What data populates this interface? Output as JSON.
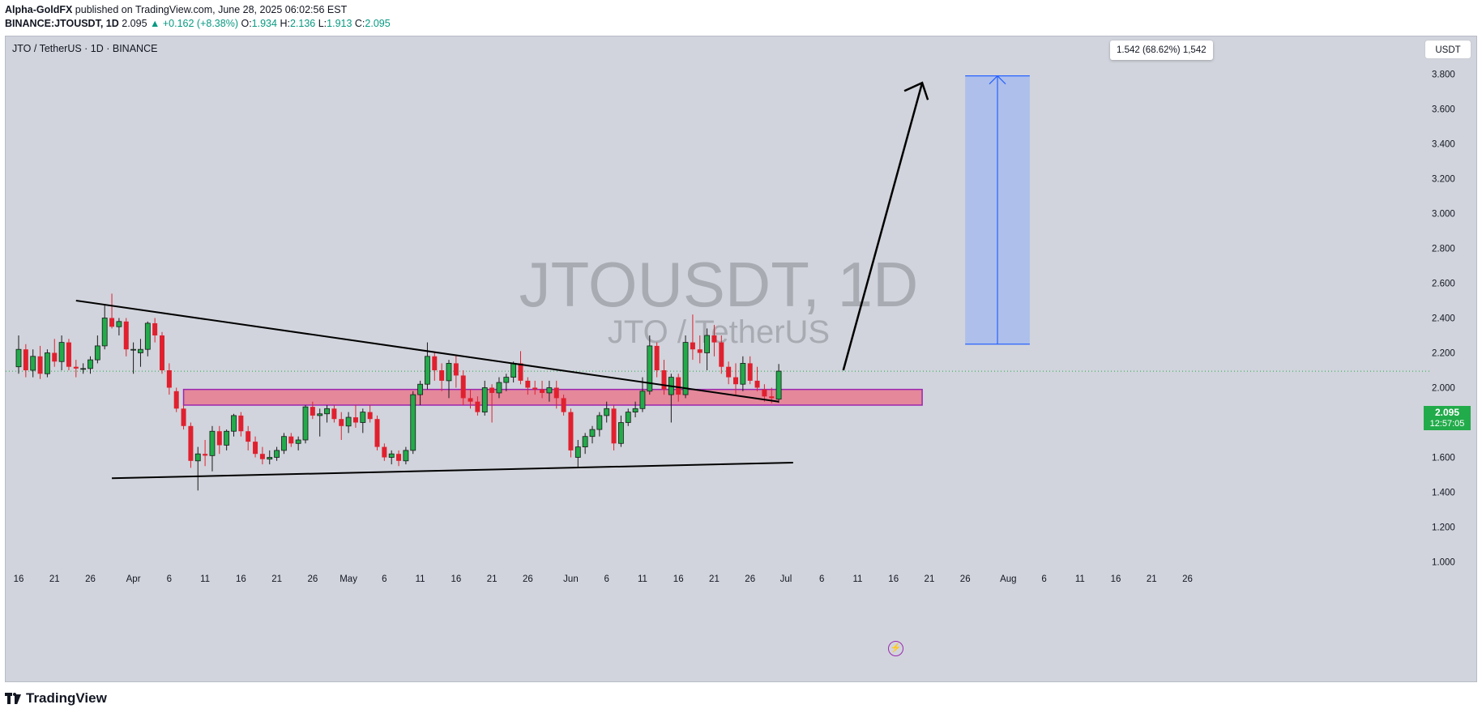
{
  "header": {
    "publisher": "Alpha-GoldFX",
    "published_text": " published on TradingView.com, June 28, 2025 06:02:56 EST",
    "symbol_line": "BINANCE:JTOUSDT, 1D",
    "last": "2.095",
    "change": "▲ +0.162 (+8.38%)",
    "o_label": "O:",
    "o": "1.934",
    "h_label": "H:",
    "h": "2.136",
    "l_label": "L:",
    "l": "1.913",
    "c_label": "C:",
    "c": "2.095"
  },
  "chart_title": "JTO / TetherUS · 1D · BINANCE",
  "currency_button": "USDT",
  "measure_label": "1.542 (68.62%) 1,542",
  "price_tag": {
    "price": "2.095",
    "countdown": "12:57:05"
  },
  "footer_brand": "TradingView",
  "colors": {
    "background": "#d1d4dc",
    "up": "#22ab4a",
    "down": "#e0202e",
    "zone_fill": "#e87a8e",
    "zone_border": "#9c27b0",
    "measure_fill": "#a9bdeb",
    "measure_line": "#2962ff",
    "watermark": "#a9abb3"
  },
  "icons": {
    "alert": "lightning-icon",
    "brand": "tradingview-logo-icon"
  },
  "chart_data": {
    "type": "candlestick",
    "watermark": {
      "title": "JTOUSDT, 1D",
      "subtitle": "JTO / TetherUS"
    },
    "y_axis": {
      "ylim": [
        0.9,
        3.83
      ],
      "ticks": [
        "1.000",
        "1.200",
        "1.400",
        "1.600",
        "1.800",
        "2.000",
        "2.200",
        "2.400",
        "2.600",
        "2.800",
        "3.000",
        "3.200",
        "3.400",
        "3.600",
        "3.800"
      ]
    },
    "x_axis": {
      "start": "2025-03-16",
      "ticks": [
        {
          "date": "2025-03-16",
          "label": "16"
        },
        {
          "date": "2025-03-21",
          "label": "21"
        },
        {
          "date": "2025-03-26",
          "label": "26"
        },
        {
          "date": "2025-04-01",
          "label": "Apr"
        },
        {
          "date": "2025-04-06",
          "label": "6"
        },
        {
          "date": "2025-04-11",
          "label": "11"
        },
        {
          "date": "2025-04-16",
          "label": "16"
        },
        {
          "date": "2025-04-21",
          "label": "21"
        },
        {
          "date": "2025-04-26",
          "label": "26"
        },
        {
          "date": "2025-05-01",
          "label": "May"
        },
        {
          "date": "2025-05-06",
          "label": "6"
        },
        {
          "date": "2025-05-11",
          "label": "11"
        },
        {
          "date": "2025-05-16",
          "label": "16"
        },
        {
          "date": "2025-05-21",
          "label": "21"
        },
        {
          "date": "2025-05-26",
          "label": "26"
        },
        {
          "date": "2025-06-01",
          "label": "Jun"
        },
        {
          "date": "2025-06-06",
          "label": "6"
        },
        {
          "date": "2025-06-11",
          "label": "11"
        },
        {
          "date": "2025-06-16",
          "label": "16"
        },
        {
          "date": "2025-06-21",
          "label": "21"
        },
        {
          "date": "2025-06-26",
          "label": "26"
        },
        {
          "date": "2025-07-01",
          "label": "Jul"
        },
        {
          "date": "2025-07-06",
          "label": "6"
        },
        {
          "date": "2025-07-11",
          "label": "11"
        },
        {
          "date": "2025-07-16",
          "label": "16"
        },
        {
          "date": "2025-07-21",
          "label": "21"
        },
        {
          "date": "2025-07-26",
          "label": "26"
        },
        {
          "date": "2025-08-01",
          "label": "Aug"
        },
        {
          "date": "2025-08-06",
          "label": "6"
        },
        {
          "date": "2025-08-11",
          "label": "11"
        },
        {
          "date": "2025-08-16",
          "label": "16"
        },
        {
          "date": "2025-08-21",
          "label": "21"
        },
        {
          "date": "2025-08-26",
          "label": "26"
        }
      ]
    },
    "candles": [
      {
        "date": "2025-03-16",
        "o": 2.12,
        "h": 2.3,
        "l": 2.08,
        "c": 2.22
      },
      {
        "date": "2025-03-17",
        "o": 2.22,
        "h": 2.25,
        "l": 2.06,
        "c": 2.1
      },
      {
        "date": "2025-03-18",
        "o": 2.1,
        "h": 2.22,
        "l": 2.06,
        "c": 2.18
      },
      {
        "date": "2025-03-19",
        "o": 2.18,
        "h": 2.24,
        "l": 2.05,
        "c": 2.08
      },
      {
        "date": "2025-03-20",
        "o": 2.08,
        "h": 2.22,
        "l": 2.06,
        "c": 2.2
      },
      {
        "date": "2025-03-21",
        "o": 2.2,
        "h": 2.28,
        "l": 2.12,
        "c": 2.15
      },
      {
        "date": "2025-03-22",
        "o": 2.15,
        "h": 2.3,
        "l": 2.1,
        "c": 2.26
      },
      {
        "date": "2025-03-23",
        "o": 2.26,
        "h": 2.28,
        "l": 2.1,
        "c": 2.12
      },
      {
        "date": "2025-03-24",
        "o": 2.12,
        "h": 2.16,
        "l": 2.06,
        "c": 2.11
      },
      {
        "date": "2025-03-25",
        "o": 2.11,
        "h": 2.14,
        "l": 2.08,
        "c": 2.11
      },
      {
        "date": "2025-03-26",
        "o": 2.11,
        "h": 2.18,
        "l": 2.08,
        "c": 2.16
      },
      {
        "date": "2025-03-27",
        "o": 2.16,
        "h": 2.3,
        "l": 2.14,
        "c": 2.24
      },
      {
        "date": "2025-03-28",
        "o": 2.24,
        "h": 2.48,
        "l": 2.22,
        "c": 2.4
      },
      {
        "date": "2025-03-29",
        "o": 2.4,
        "h": 2.54,
        "l": 2.34,
        "c": 2.35
      },
      {
        "date": "2025-03-30",
        "o": 2.35,
        "h": 2.4,
        "l": 2.3,
        "c": 2.38
      },
      {
        "date": "2025-03-31",
        "o": 2.38,
        "h": 2.4,
        "l": 2.18,
        "c": 2.22
      },
      {
        "date": "2025-04-01",
        "o": 2.22,
        "h": 2.26,
        "l": 2.08,
        "c": 2.22
      },
      {
        "date": "2025-04-02",
        "o": 2.2,
        "h": 2.28,
        "l": 2.12,
        "c": 2.22
      },
      {
        "date": "2025-04-03",
        "o": 2.22,
        "h": 2.38,
        "l": 2.18,
        "c": 2.37
      },
      {
        "date": "2025-04-04",
        "o": 2.37,
        "h": 2.4,
        "l": 2.26,
        "c": 2.3
      },
      {
        "date": "2025-04-05",
        "o": 2.3,
        "h": 2.32,
        "l": 2.08,
        "c": 2.1
      },
      {
        "date": "2025-04-06",
        "o": 2.1,
        "h": 2.14,
        "l": 1.96,
        "c": 2.0
      },
      {
        "date": "2025-04-07",
        "o": 1.98,
        "h": 2.0,
        "l": 1.86,
        "c": 1.88
      },
      {
        "date": "2025-04-08",
        "o": 1.88,
        "h": 1.9,
        "l": 1.76,
        "c": 1.78
      },
      {
        "date": "2025-04-09",
        "o": 1.78,
        "h": 1.8,
        "l": 1.54,
        "c": 1.58
      },
      {
        "date": "2025-04-10",
        "o": 1.58,
        "h": 1.66,
        "l": 1.41,
        "c": 1.62
      },
      {
        "date": "2025-04-11",
        "o": 1.62,
        "h": 1.7,
        "l": 1.55,
        "c": 1.61
      },
      {
        "date": "2025-04-12",
        "o": 1.61,
        "h": 1.78,
        "l": 1.52,
        "c": 1.75
      },
      {
        "date": "2025-04-13",
        "o": 1.75,
        "h": 1.78,
        "l": 1.62,
        "c": 1.67
      },
      {
        "date": "2025-04-14",
        "o": 1.67,
        "h": 1.76,
        "l": 1.64,
        "c": 1.75
      },
      {
        "date": "2025-04-15",
        "o": 1.75,
        "h": 1.85,
        "l": 1.72,
        "c": 1.84
      },
      {
        "date": "2025-04-16",
        "o": 1.84,
        "h": 1.86,
        "l": 1.72,
        "c": 1.75
      },
      {
        "date": "2025-04-17",
        "o": 1.75,
        "h": 1.78,
        "l": 1.64,
        "c": 1.69
      },
      {
        "date": "2025-04-18",
        "o": 1.69,
        "h": 1.72,
        "l": 1.6,
        "c": 1.62
      },
      {
        "date": "2025-04-19",
        "o": 1.62,
        "h": 1.66,
        "l": 1.56,
        "c": 1.59
      },
      {
        "date": "2025-04-20",
        "o": 1.59,
        "h": 1.64,
        "l": 1.56,
        "c": 1.6
      },
      {
        "date": "2025-04-21",
        "o": 1.6,
        "h": 1.66,
        "l": 1.58,
        "c": 1.64
      },
      {
        "date": "2025-04-22",
        "o": 1.64,
        "h": 1.74,
        "l": 1.62,
        "c": 1.72
      },
      {
        "date": "2025-04-23",
        "o": 1.72,
        "h": 1.74,
        "l": 1.66,
        "c": 1.68
      },
      {
        "date": "2025-04-24",
        "o": 1.68,
        "h": 1.72,
        "l": 1.64,
        "c": 1.7
      },
      {
        "date": "2025-04-25",
        "o": 1.7,
        "h": 1.9,
        "l": 1.68,
        "c": 1.89
      },
      {
        "date": "2025-04-26",
        "o": 1.89,
        "h": 1.92,
        "l": 1.82,
        "c": 1.84
      },
      {
        "date": "2025-04-27",
        "o": 1.84,
        "h": 1.88,
        "l": 1.72,
        "c": 1.85
      },
      {
        "date": "2025-04-28",
        "o": 1.85,
        "h": 1.9,
        "l": 1.8,
        "c": 1.88
      },
      {
        "date": "2025-04-29",
        "o": 1.88,
        "h": 1.9,
        "l": 1.8,
        "c": 1.82
      },
      {
        "date": "2025-04-30",
        "o": 1.82,
        "h": 1.86,
        "l": 1.7,
        "c": 1.78
      },
      {
        "date": "2025-05-01",
        "o": 1.78,
        "h": 1.86,
        "l": 1.74,
        "c": 1.83
      },
      {
        "date": "2025-05-02",
        "o": 1.83,
        "h": 1.9,
        "l": 1.77,
        "c": 1.8
      },
      {
        "date": "2025-05-03",
        "o": 1.8,
        "h": 1.88,
        "l": 1.74,
        "c": 1.86
      },
      {
        "date": "2025-05-04",
        "o": 1.86,
        "h": 1.9,
        "l": 1.8,
        "c": 1.82
      },
      {
        "date": "2025-05-05",
        "o": 1.82,
        "h": 1.84,
        "l": 1.64,
        "c": 1.66
      },
      {
        "date": "2025-05-06",
        "o": 1.66,
        "h": 1.68,
        "l": 1.58,
        "c": 1.6
      },
      {
        "date": "2025-05-07",
        "o": 1.6,
        "h": 1.64,
        "l": 1.56,
        "c": 1.62
      },
      {
        "date": "2025-05-08",
        "o": 1.62,
        "h": 1.64,
        "l": 1.55,
        "c": 1.58
      },
      {
        "date": "2025-05-09",
        "o": 1.58,
        "h": 1.66,
        "l": 1.56,
        "c": 1.64
      },
      {
        "date": "2025-05-10",
        "o": 1.64,
        "h": 1.98,
        "l": 1.62,
        "c": 1.96
      },
      {
        "date": "2025-05-11",
        "o": 1.96,
        "h": 2.04,
        "l": 1.9,
        "c": 2.02
      },
      {
        "date": "2025-05-12",
        "o": 2.02,
        "h": 2.26,
        "l": 1.99,
        "c": 2.18
      },
      {
        "date": "2025-05-13",
        "o": 2.18,
        "h": 2.2,
        "l": 2.04,
        "c": 2.1
      },
      {
        "date": "2025-05-14",
        "o": 2.1,
        "h": 2.14,
        "l": 1.98,
        "c": 2.04
      },
      {
        "date": "2025-05-15",
        "o": 2.04,
        "h": 2.16,
        "l": 1.94,
        "c": 2.14
      },
      {
        "date": "2025-05-16",
        "o": 2.14,
        "h": 2.19,
        "l": 2.0,
        "c": 2.07
      },
      {
        "date": "2025-05-17",
        "o": 2.07,
        "h": 2.1,
        "l": 1.9,
        "c": 1.94
      },
      {
        "date": "2025-05-18",
        "o": 1.94,
        "h": 1.99,
        "l": 1.88,
        "c": 1.92
      },
      {
        "date": "2025-05-19",
        "o": 1.92,
        "h": 1.95,
        "l": 1.84,
        "c": 1.86
      },
      {
        "date": "2025-05-20",
        "o": 1.86,
        "h": 2.04,
        "l": 1.84,
        "c": 2.0
      },
      {
        "date": "2025-05-21",
        "o": 2.0,
        "h": 2.02,
        "l": 1.8,
        "c": 1.97
      },
      {
        "date": "2025-05-22",
        "o": 1.97,
        "h": 2.06,
        "l": 1.94,
        "c": 2.03
      },
      {
        "date": "2025-05-23",
        "o": 2.03,
        "h": 2.08,
        "l": 1.98,
        "c": 2.06
      },
      {
        "date": "2025-05-24",
        "o": 2.06,
        "h": 2.15,
        "l": 2.03,
        "c": 2.14
      },
      {
        "date": "2025-05-25",
        "o": 2.14,
        "h": 2.21,
        "l": 2.02,
        "c": 2.04
      },
      {
        "date": "2025-05-26",
        "o": 2.04,
        "h": 2.06,
        "l": 1.96,
        "c": 2.0
      },
      {
        "date": "2025-05-27",
        "o": 2.0,
        "h": 2.04,
        "l": 1.96,
        "c": 1.99
      },
      {
        "date": "2025-05-28",
        "o": 1.99,
        "h": 2.04,
        "l": 1.94,
        "c": 1.97
      },
      {
        "date": "2025-05-29",
        "o": 1.97,
        "h": 2.04,
        "l": 1.92,
        "c": 2.0
      },
      {
        "date": "2025-05-30",
        "o": 2.0,
        "h": 2.04,
        "l": 1.88,
        "c": 1.94
      },
      {
        "date": "2025-05-31",
        "o": 1.94,
        "h": 1.96,
        "l": 1.84,
        "c": 1.86
      },
      {
        "date": "2025-06-01",
        "o": 1.86,
        "h": 1.88,
        "l": 1.6,
        "c": 1.64
      },
      {
        "date": "2025-06-02",
        "o": 1.6,
        "h": 1.7,
        "l": 1.54,
        "c": 1.66
      },
      {
        "date": "2025-06-03",
        "o": 1.66,
        "h": 1.74,
        "l": 1.62,
        "c": 1.72
      },
      {
        "date": "2025-06-04",
        "o": 1.72,
        "h": 1.78,
        "l": 1.68,
        "c": 1.76
      },
      {
        "date": "2025-06-05",
        "o": 1.76,
        "h": 1.86,
        "l": 1.72,
        "c": 1.84
      },
      {
        "date": "2025-06-06",
        "o": 1.84,
        "h": 1.92,
        "l": 1.8,
        "c": 1.88
      },
      {
        "date": "2025-06-07",
        "o": 1.88,
        "h": 1.9,
        "l": 1.64,
        "c": 1.68
      },
      {
        "date": "2025-06-08",
        "o": 1.68,
        "h": 1.84,
        "l": 1.66,
        "c": 1.8
      },
      {
        "date": "2025-06-09",
        "o": 1.8,
        "h": 1.88,
        "l": 1.78,
        "c": 1.86
      },
      {
        "date": "2025-06-10",
        "o": 1.86,
        "h": 1.92,
        "l": 1.83,
        "c": 1.88
      },
      {
        "date": "2025-06-11",
        "o": 1.88,
        "h": 2.06,
        "l": 1.86,
        "c": 1.98
      },
      {
        "date": "2025-06-12",
        "o": 1.98,
        "h": 2.3,
        "l": 1.96,
        "c": 2.24
      },
      {
        "date": "2025-06-13",
        "o": 2.24,
        "h": 2.26,
        "l": 2.06,
        "c": 2.1
      },
      {
        "date": "2025-06-14",
        "o": 2.1,
        "h": 2.16,
        "l": 1.96,
        "c": 1.99
      },
      {
        "date": "2025-06-15",
        "o": 1.96,
        "h": 2.08,
        "l": 1.8,
        "c": 2.06
      },
      {
        "date": "2025-06-16",
        "o": 2.06,
        "h": 2.08,
        "l": 1.92,
        "c": 1.96
      },
      {
        "date": "2025-06-17",
        "o": 1.96,
        "h": 2.3,
        "l": 1.94,
        "c": 2.26
      },
      {
        "date": "2025-06-18",
        "o": 2.26,
        "h": 2.42,
        "l": 2.16,
        "c": 2.22
      },
      {
        "date": "2025-06-19",
        "o": 2.22,
        "h": 2.3,
        "l": 2.14,
        "c": 2.2
      },
      {
        "date": "2025-06-20",
        "o": 2.2,
        "h": 2.34,
        "l": 2.1,
        "c": 2.3
      },
      {
        "date": "2025-06-21",
        "o": 2.3,
        "h": 2.36,
        "l": 2.18,
        "c": 2.26
      },
      {
        "date": "2025-06-22",
        "o": 2.26,
        "h": 2.3,
        "l": 2.08,
        "c": 2.12
      },
      {
        "date": "2025-06-23",
        "o": 2.12,
        "h": 2.15,
        "l": 2.02,
        "c": 2.06
      },
      {
        "date": "2025-06-24",
        "o": 2.06,
        "h": 2.14,
        "l": 1.96,
        "c": 2.02
      },
      {
        "date": "2025-06-25",
        "o": 2.02,
        "h": 2.18,
        "l": 1.98,
        "c": 2.14
      },
      {
        "date": "2025-06-26",
        "o": 2.14,
        "h": 2.18,
        "l": 2.02,
        "c": 2.04
      },
      {
        "date": "2025-06-27",
        "o": 2.04,
        "h": 2.12,
        "l": 1.98,
        "c": 2.0
      },
      {
        "date": "2025-06-28",
        "o": 1.99,
        "h": 2.02,
        "l": 1.92,
        "c": 1.95
      },
      {
        "date": "2025-06-29",
        "o": 1.95,
        "h": 2.0,
        "l": 1.91,
        "c": 1.94
      },
      {
        "date": "2025-06-30",
        "o": 1.934,
        "h": 2.136,
        "l": 1.913,
        "c": 2.095
      }
    ],
    "last_price_line": 2.095,
    "annotations": {
      "descending_trendline": {
        "from": {
          "date": "2025-03-24",
          "price": 2.5
        },
        "to": {
          "date": "2025-06-30",
          "price": 1.92
        }
      },
      "ascending_support": {
        "from": {
          "date": "2025-03-29",
          "price": 1.48
        },
        "to": {
          "date": "2025-07-02",
          "price": 1.57
        }
      },
      "zone": {
        "from": "2025-04-08",
        "to": "2025-07-20",
        "low": 1.9,
        "high": 1.99
      },
      "measure": {
        "from": "2025-07-26",
        "to": "2025-08-04",
        "low": 2.25,
        "high": 3.79
      },
      "arrow": {
        "from": {
          "date": "2025-07-09",
          "price": 2.1
        },
        "to": {
          "date": "2025-07-20",
          "price": 3.75
        }
      }
    }
  }
}
